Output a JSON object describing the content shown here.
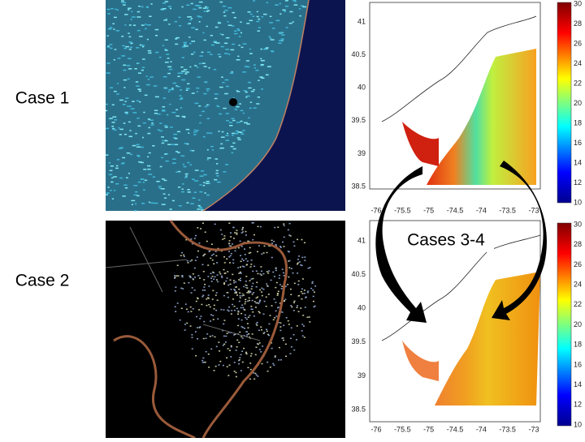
{
  "labels": {
    "case1": "Case 1",
    "case2": "Case 2",
    "cases34": "Cases 3-4"
  },
  "maps": [
    {
      "yticks": [
        41,
        40.5,
        40,
        39.5,
        39,
        38.5
      ],
      "xticks": [
        -76,
        -75.5,
        -75,
        -74.5,
        -74,
        -73.5,
        -73
      ],
      "colorbar_ticks": [
        30,
        28,
        26,
        24,
        22,
        20,
        18,
        16,
        14,
        12,
        10
      ]
    },
    {
      "yticks": [
        41,
        40.5,
        40,
        39.5,
        39,
        38.5
      ],
      "xticks": [
        -76,
        -75.5,
        -75,
        -74.5,
        -74,
        -73.5,
        -73
      ],
      "colorbar_ticks": [
        30,
        28,
        26,
        24,
        22,
        20,
        18,
        16,
        14,
        12,
        10
      ]
    }
  ]
}
